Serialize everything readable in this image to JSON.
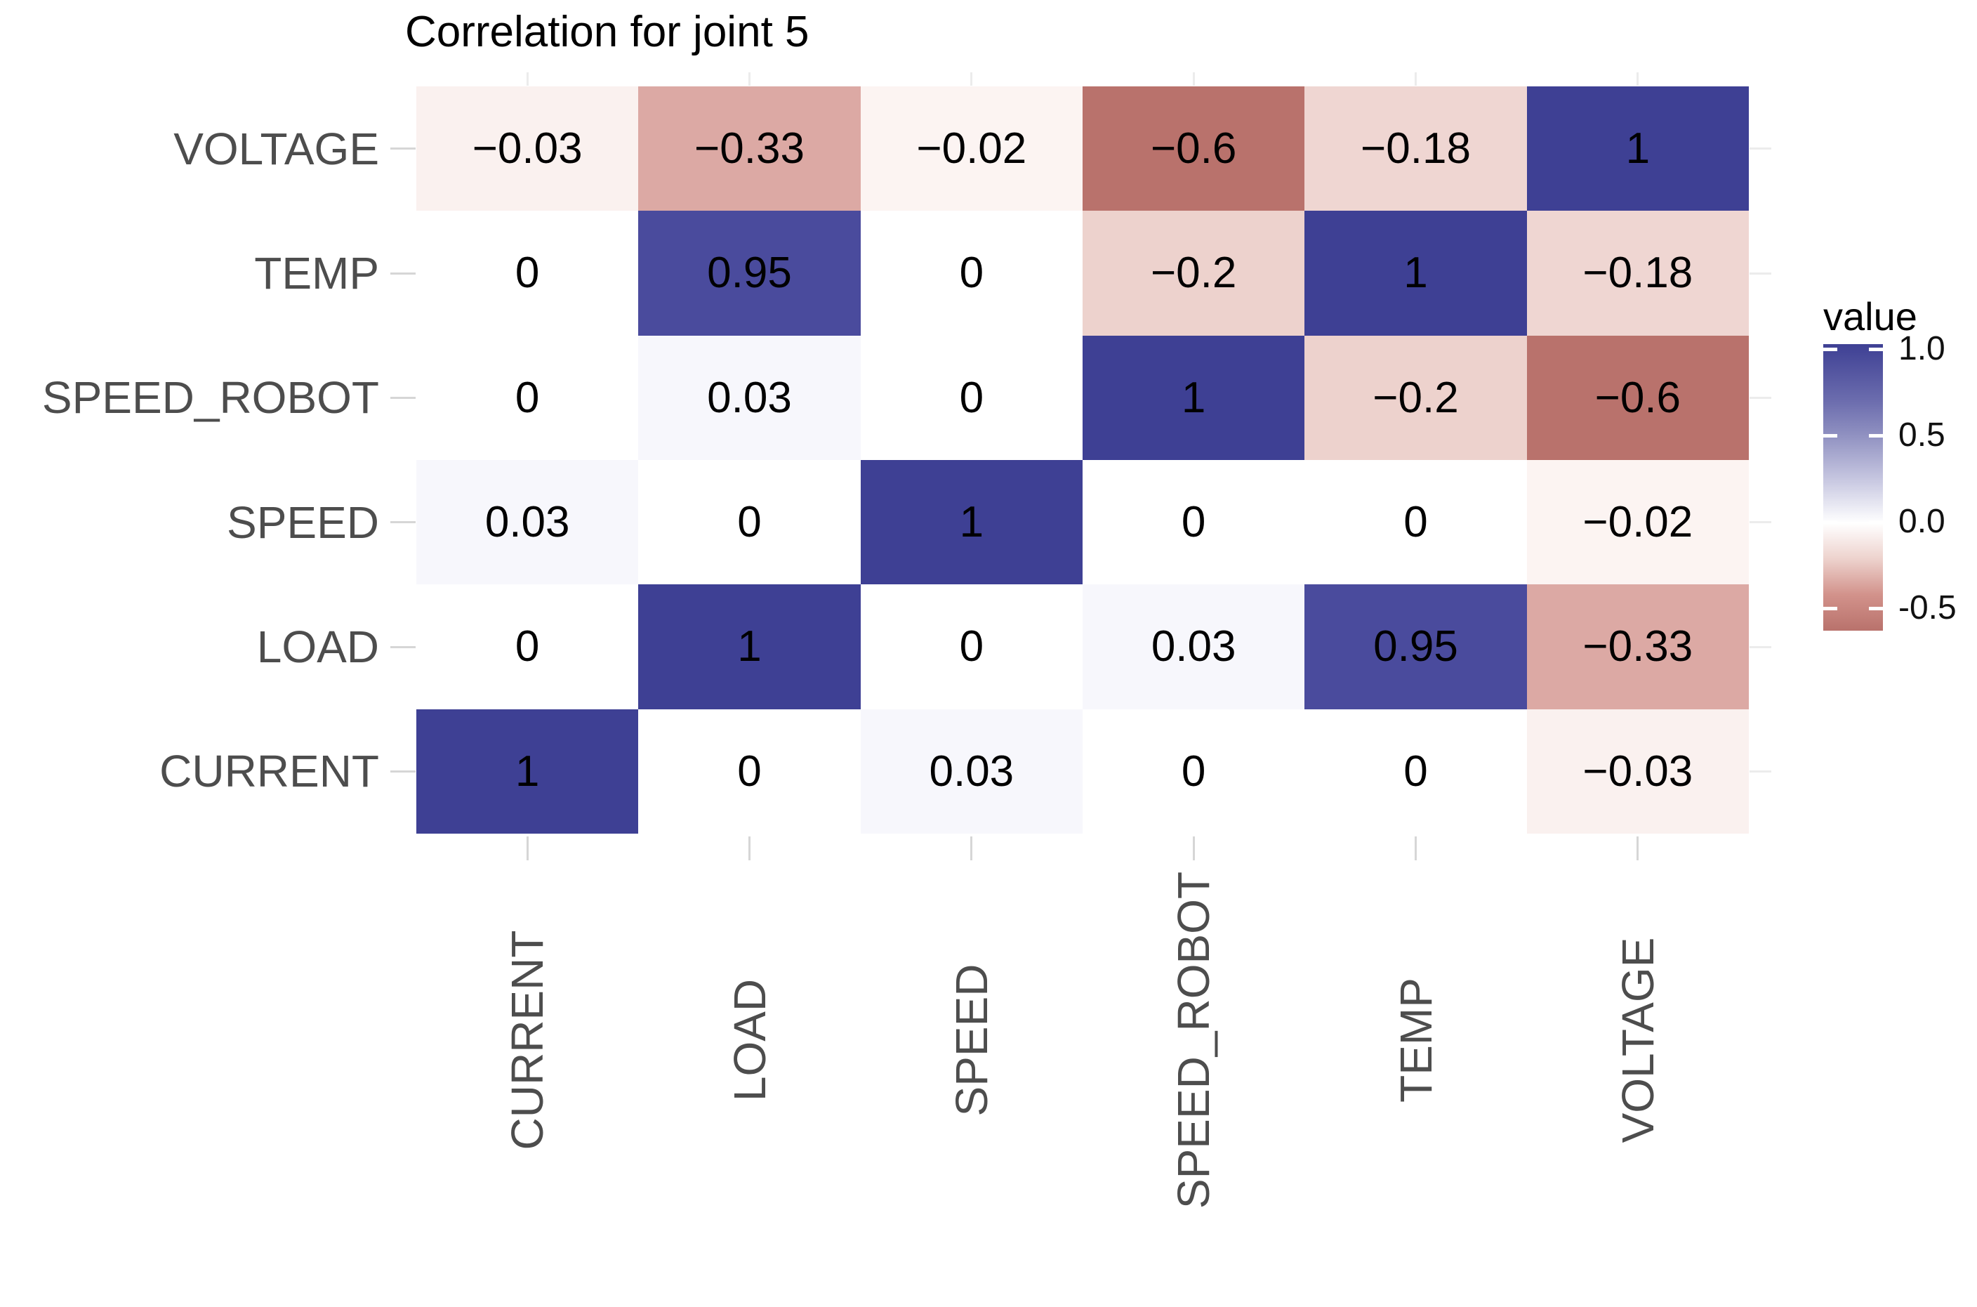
{
  "title": "Correlation for joint 5",
  "legend": {
    "title": "value",
    "tick_labels": [
      "1.0",
      "0.5",
      "0.0",
      "-0.5"
    ],
    "tick_values": [
      1.0,
      0.5,
      0.0,
      -0.5
    ]
  },
  "colors": {
    "positive_end": "#3E4094",
    "zero": "#FFFFFF",
    "negative_min": "#B9726C",
    "axis_text": "#4D4D4D",
    "cell_text": "#000000",
    "tick_mark": "#D6D6D6"
  },
  "chart_data": {
    "type": "heatmap",
    "title": "Correlation for joint 5",
    "x_categories": [
      "CURRENT",
      "LOAD",
      "SPEED",
      "SPEED_ROBOT",
      "TEMP",
      "VOLTAGE"
    ],
    "y_categories_top_to_bottom": [
      "VOLTAGE",
      "TEMP",
      "SPEED_ROBOT",
      "SPEED",
      "LOAD",
      "CURRENT"
    ],
    "matrix_rows_top_to_bottom": [
      [
        -0.03,
        -0.33,
        -0.02,
        -0.6,
        -0.18,
        1
      ],
      [
        0,
        0.95,
        0,
        -0.2,
        1,
        -0.18
      ],
      [
        0,
        0.03,
        0,
        1,
        -0.2,
        -0.6
      ],
      [
        0.03,
        0,
        1,
        0,
        0,
        -0.02
      ],
      [
        0,
        1,
        0,
        0.03,
        0.95,
        -0.33
      ],
      [
        1,
        0,
        0.03,
        0,
        0,
        -0.03
      ]
    ],
    "cell_labels_rows_top_to_bottom": [
      [
        "−0.03",
        "−0.33",
        "−0.02",
        "−0.6",
        "−0.18",
        "1"
      ],
      [
        "0",
        "0.95",
        "0",
        "−0.2",
        "1",
        "−0.18"
      ],
      [
        "0",
        "0.03",
        "0",
        "1",
        "−0.2",
        "−0.6"
      ],
      [
        "0.03",
        "0",
        "1",
        "0",
        "0",
        "−0.02"
      ],
      [
        "0",
        "1",
        "0",
        "0.03",
        "0.95",
        "−0.33"
      ],
      [
        "1",
        "0",
        "0.03",
        "0",
        "0",
        "−0.03"
      ]
    ],
    "value_range": [
      -0.6,
      1.0
    ],
    "legend_title": "value",
    "legend_tick_values": [
      1.0,
      0.5,
      0.0,
      -0.5
    ],
    "legend_tick_labels": [
      "1.0",
      "0.5",
      "0.0",
      "-0.5"
    ],
    "legend_position": "right",
    "grid": false,
    "colormap_stops": [
      {
        "v": -0.6,
        "c": "#B9726C"
      },
      {
        "v": -0.33,
        "c": "#DCA9A4"
      },
      {
        "v": -0.2,
        "c": "#EDD2CD"
      },
      {
        "v": -0.18,
        "c": "#EFD6D2"
      },
      {
        "v": -0.03,
        "c": "#FAF1EF"
      },
      {
        "v": -0.02,
        "c": "#FCF4F2"
      },
      {
        "v": 0,
        "c": "#FFFFFF"
      },
      {
        "v": 0.03,
        "c": "#F7F7FC"
      },
      {
        "v": 0.95,
        "c": "#4A4B9D"
      },
      {
        "v": 1,
        "c": "#3E4094"
      }
    ],
    "legend_gradient_top_to_bottom": [
      {
        "p": 0,
        "c": "#3E4094"
      },
      {
        "p": 0.2,
        "c": "#6C6DAE"
      },
      {
        "p": 0.3125,
        "c": "#8E8FC0"
      },
      {
        "p": 0.47,
        "c": "#C6C6E0"
      },
      {
        "p": 0.625,
        "c": "#FFFFFF"
      },
      {
        "p": 0.75,
        "c": "#EDD2CD"
      },
      {
        "p": 0.875,
        "c": "#D2928B"
      },
      {
        "p": 1,
        "c": "#B9726C"
      }
    ]
  }
}
